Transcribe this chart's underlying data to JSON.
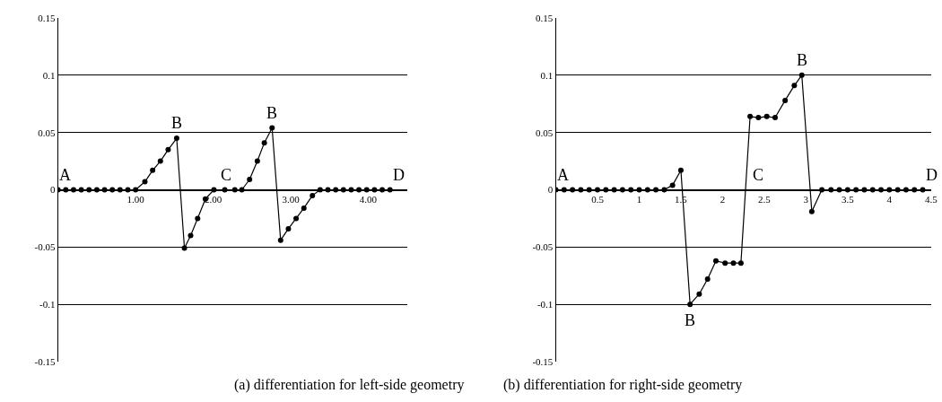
{
  "chart_data": [
    {
      "type": "line",
      "title": "(a) differentiation for left-side geometry",
      "x": [
        0,
        0.1,
        0.2,
        0.3,
        0.4,
        0.5,
        0.6,
        0.7,
        0.8,
        0.9,
        1.0,
        1.12,
        1.22,
        1.32,
        1.42,
        1.53,
        1.63,
        1.71,
        1.8,
        1.9,
        2.01,
        2.15,
        2.28,
        2.37,
        2.47,
        2.57,
        2.66,
        2.76,
        2.87,
        2.97,
        3.07,
        3.17,
        3.28,
        3.38,
        3.48,
        3.58,
        3.68,
        3.78,
        3.88,
        3.98,
        4.08,
        4.18,
        4.28
      ],
      "values": [
        0,
        0,
        0,
        0,
        0,
        0,
        0,
        0,
        0,
        0,
        0,
        0.007,
        0.017,
        0.025,
        0.035,
        0.045,
        -0.051,
        -0.04,
        -0.025,
        -0.008,
        0,
        0,
        0,
        0,
        0.009,
        0.025,
        0.041,
        0.054,
        -0.044,
        -0.034,
        -0.025,
        -0.016,
        -0.005,
        0,
        0,
        0,
        0,
        0,
        0,
        0,
        0,
        0,
        0
      ],
      "color": "#000000",
      "marker": "circle",
      "line_style": "solid",
      "grid": "y",
      "legend": false,
      "xlim": [
        0,
        4.5
      ],
      "xticks": [
        {
          "value": 1,
          "label": "1.00"
        },
        {
          "value": 2,
          "label": "2.00"
        },
        {
          "value": 3,
          "label": "3.00"
        },
        {
          "value": 4,
          "label": "4.00"
        }
      ],
      "ylim": [
        -0.15,
        0.15
      ],
      "yticks": [
        -0.15,
        -0.1,
        -0.05,
        0,
        0.05,
        0.1,
        0.15
      ],
      "annotations": [
        {
          "text": "A",
          "x": 0,
          "y": 0
        },
        {
          "text": "B",
          "x": 1.53,
          "y": 0.045
        },
        {
          "text": "B",
          "x": 2.76,
          "y": 0.054
        },
        {
          "text": "C",
          "x": 2.01,
          "y": 0
        },
        {
          "text": "D",
          "x": 4.28,
          "y": 0
        }
      ]
    },
    {
      "type": "line",
      "title": "(b) differentiation for right-side geometry",
      "x": [
        0,
        0.1,
        0.2,
        0.3,
        0.4,
        0.5,
        0.6,
        0.7,
        0.8,
        0.9,
        1.0,
        1.1,
        1.2,
        1.3,
        1.4,
        1.5,
        1.61,
        1.72,
        1.82,
        1.92,
        2.03,
        2.13,
        2.22,
        2.33,
        2.43,
        2.53,
        2.63,
        2.75,
        2.86,
        2.95,
        3.07,
        3.19,
        3.3,
        3.4,
        3.5,
        3.6,
        3.7,
        3.8,
        3.9,
        4.0,
        4.1,
        4.2,
        4.3,
        4.4
      ],
      "values": [
        0,
        0,
        0,
        0,
        0,
        0,
        0,
        0,
        0,
        0,
        0,
        0,
        0,
        0,
        0.004,
        0.017,
        -0.1,
        -0.091,
        -0.078,
        -0.062,
        -0.064,
        -0.064,
        -0.064,
        0.064,
        0.063,
        0.064,
        0.063,
        0.078,
        0.091,
        0.1,
        -0.019,
        0,
        0,
        0,
        0,
        0,
        0,
        0,
        0,
        0,
        0,
        0,
        0,
        0
      ],
      "color": "#000000",
      "marker": "circle",
      "line_style": "solid",
      "grid": "y",
      "legend": false,
      "xlim": [
        0,
        4.5
      ],
      "xticks": [
        0.5,
        1,
        1.5,
        2,
        2.5,
        3,
        3.5,
        4,
        4.5
      ],
      "ylim": [
        -0.15,
        0.15
      ],
      "yticks": [
        -0.15,
        -0.1,
        -0.05,
        0,
        0.05,
        0.1,
        0.15
      ],
      "annotations": [
        {
          "text": "A",
          "x": 0,
          "y": 0
        },
        {
          "text": "B",
          "x": 2.95,
          "y": 0.1
        },
        {
          "text": "B",
          "x": 1.61,
          "y": -0.1
        },
        {
          "text": "C",
          "x": 2.28,
          "y": 0
        },
        {
          "text": "D",
          "x": 4.4,
          "y": 0
        }
      ]
    }
  ]
}
